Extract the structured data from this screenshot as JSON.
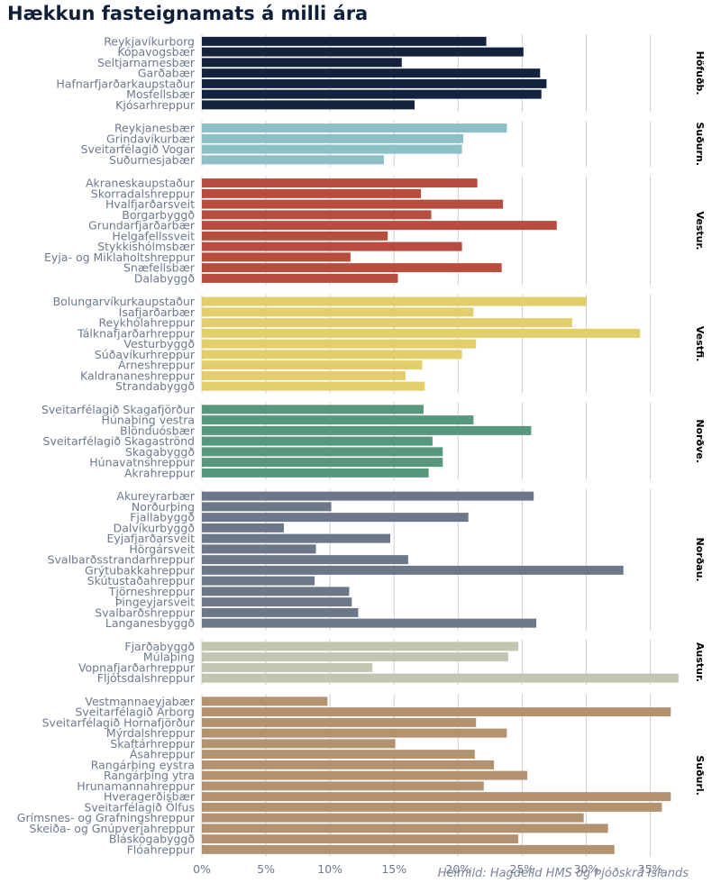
{
  "chart_data": {
    "type": "bar",
    "orientation": "horizontal",
    "title": "Hækkun fasteignamats á milli ára",
    "source": "Heimild: Hagdeild HMS og Þjóðskrá Íslands",
    "xlim": [
      0,
      37
    ],
    "x_ticks": [
      0,
      5,
      10,
      15,
      20,
      25,
      30,
      35
    ],
    "x_tick_suffix": "%",
    "grid": "vertical",
    "groups": [
      {
        "name": "Höfuðb.",
        "color": "#15223d",
        "items": [
          {
            "label": "Reykjavíkurborg",
            "value": 22.2
          },
          {
            "label": "Kópavogsbær",
            "value": 25.1
          },
          {
            "label": "Seltjarnarnesbær",
            "value": 15.6
          },
          {
            "label": "Garðabær",
            "value": 26.4
          },
          {
            "label": "Hafnarfjarðarkaupstaður",
            "value": 26.9
          },
          {
            "label": "Mosfellsbær",
            "value": 26.5
          },
          {
            "label": "Kjósarhreppur",
            "value": 16.6
          }
        ]
      },
      {
        "name": "Suðurn.",
        "color": "#8cbfc6",
        "items": [
          {
            "label": "Reykjanesbær",
            "value": 23.8
          },
          {
            "label": "Grindavíkurbær",
            "value": 20.4
          },
          {
            "label": "Sveitarfélagið Vogar",
            "value": 20.3
          },
          {
            "label": "Suðurnesjabær",
            "value": 14.2
          }
        ]
      },
      {
        "name": "Vestur.",
        "color": "#b84c3e",
        "items": [
          {
            "label": "Akraneskaupstaður",
            "value": 21.5
          },
          {
            "label": "Skorradalshreppur",
            "value": 17.1
          },
          {
            "label": "Hvalfjarðarsveit",
            "value": 23.5
          },
          {
            "label": "Borgarbyggð",
            "value": 17.9
          },
          {
            "label": "Grundarfjarðarbær",
            "value": 27.7
          },
          {
            "label": "Helgafellssveit",
            "value": 14.5
          },
          {
            "label": "Stykkishólmsbær",
            "value": 20.3
          },
          {
            "label": "Eyja- og Miklaholtshreppur",
            "value": 11.6
          },
          {
            "label": "Snæfellsbær",
            "value": 23.4
          },
          {
            "label": "Dalabyggð",
            "value": 15.3
          }
        ]
      },
      {
        "name": "Vestfi.",
        "color": "#e2ce6a",
        "items": [
          {
            "label": "Bolungarvíkurkaupstaður",
            "value": 30.0
          },
          {
            "label": "Ísafjarðarbær",
            "value": 21.2
          },
          {
            "label": "Reykhólahreppur",
            "value": 28.9
          },
          {
            "label": "Tálknafjarðarhreppur",
            "value": 34.2
          },
          {
            "label": "Vesturbyggð",
            "value": 21.4
          },
          {
            "label": "Súðavíkurhreppur",
            "value": 20.3
          },
          {
            "label": "Árneshreppur",
            "value": 17.2
          },
          {
            "label": "Kaldrananeshreppur",
            "value": 15.9
          },
          {
            "label": "Strandabyggð",
            "value": 17.4
          }
        ]
      },
      {
        "name": "Norðve.",
        "color": "#57977b",
        "items": [
          {
            "label": "Sveitarfélagið Skagafjörður",
            "value": 17.3
          },
          {
            "label": "Húnaþing vestra",
            "value": 21.2
          },
          {
            "label": "Blönduósbær",
            "value": 25.7
          },
          {
            "label": "Sveitarfélagið Skagaströnd",
            "value": 18.0
          },
          {
            "label": "Skagabyggð",
            "value": 18.8
          },
          {
            "label": "Húnavatnshreppur",
            "value": 18.8
          },
          {
            "label": "Akrahreppur",
            "value": 17.7
          }
        ]
      },
      {
        "name": "Norðau.",
        "color": "#6c7889",
        "items": [
          {
            "label": "Akureyrarbær",
            "value": 25.9
          },
          {
            "label": "Norðurþing",
            "value": 10.1
          },
          {
            "label": "Fjallabyggð",
            "value": 20.8
          },
          {
            "label": "Dalvíkurbyggð",
            "value": 6.4
          },
          {
            "label": "Eyjafjarðarsveit",
            "value": 14.7
          },
          {
            "label": "Hörgársveit",
            "value": 8.9
          },
          {
            "label": "Svalbarðsstrandarhreppur",
            "value": 16.1
          },
          {
            "label": "Grýtubakkahreppur",
            "value": 32.9
          },
          {
            "label": "Skútustaðahreppur",
            "value": 8.8
          },
          {
            "label": "Tjörneshreppur",
            "value": 11.5
          },
          {
            "label": "Þingeyjarsveit",
            "value": 11.7
          },
          {
            "label": "Svalbarðshreppur",
            "value": 12.2
          },
          {
            "label": "Langanesbyggð",
            "value": 26.1
          }
        ]
      },
      {
        "name": "Austur.",
        "color": "#c4c5b1",
        "items": [
          {
            "label": "Fjarðabyggð",
            "value": 24.7
          },
          {
            "label": "Múlaþing",
            "value": 23.9
          },
          {
            "label": "Vopnafjarðarhreppur",
            "value": 13.3
          },
          {
            "label": "Fljótsdalshreppur",
            "value": 37.2
          }
        ]
      },
      {
        "name": "Suðurl.",
        "color": "#b39270",
        "items": [
          {
            "label": "Vestmannaeyjabær",
            "value": 9.8
          },
          {
            "label": "Sveitarfélagið Árborg",
            "value": 36.6
          },
          {
            "label": "Sveitarfélagið Hornafjörður",
            "value": 21.4
          },
          {
            "label": "Mýrdalshreppur",
            "value": 23.8
          },
          {
            "label": "Skaftárhreppur",
            "value": 15.1
          },
          {
            "label": "Ásahreppur",
            "value": 21.3
          },
          {
            "label": "Rangárþing eystra",
            "value": 22.8
          },
          {
            "label": "Rangárþing ytra",
            "value": 25.4
          },
          {
            "label": "Hrunamannahreppur",
            "value": 22.0
          },
          {
            "label": "Hveragerðisbær",
            "value": 36.6
          },
          {
            "label": "Sveitarfélagið Ölfus",
            "value": 35.9
          },
          {
            "label": "Grímsnes- og Grafningshreppur",
            "value": 29.8
          },
          {
            "label": "Skeiða- og Gnúpverjahreppur",
            "value": 31.7
          },
          {
            "label": "Bláskógabyggð",
            "value": 24.7
          },
          {
            "label": "Flóahreppur",
            "value": 32.2
          }
        ]
      }
    ]
  }
}
